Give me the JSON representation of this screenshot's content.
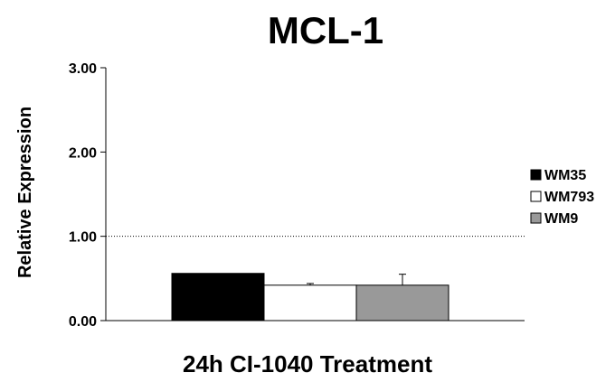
{
  "chart_data": {
    "type": "bar",
    "title": "MCL-1",
    "xlabel": "24h CI-1040 Treatment",
    "ylabel": "Relative Expression",
    "categories": [
      ""
    ],
    "ylim": [
      0,
      3
    ],
    "yticks": [
      "0.00",
      "1.00",
      "2.00",
      "3.00"
    ],
    "reference_line": 1.0,
    "grid": false,
    "legend_position": "right",
    "series": [
      {
        "name": "WM35",
        "values": [
          0.56
        ],
        "error": [
          0.0
        ],
        "color": "#000000"
      },
      {
        "name": "WM793",
        "values": [
          0.42
        ],
        "error": [
          0.02
        ],
        "color": "#ffffff"
      },
      {
        "name": "WM9",
        "values": [
          0.42
        ],
        "error": [
          0.13
        ],
        "color": "#999999"
      }
    ]
  }
}
